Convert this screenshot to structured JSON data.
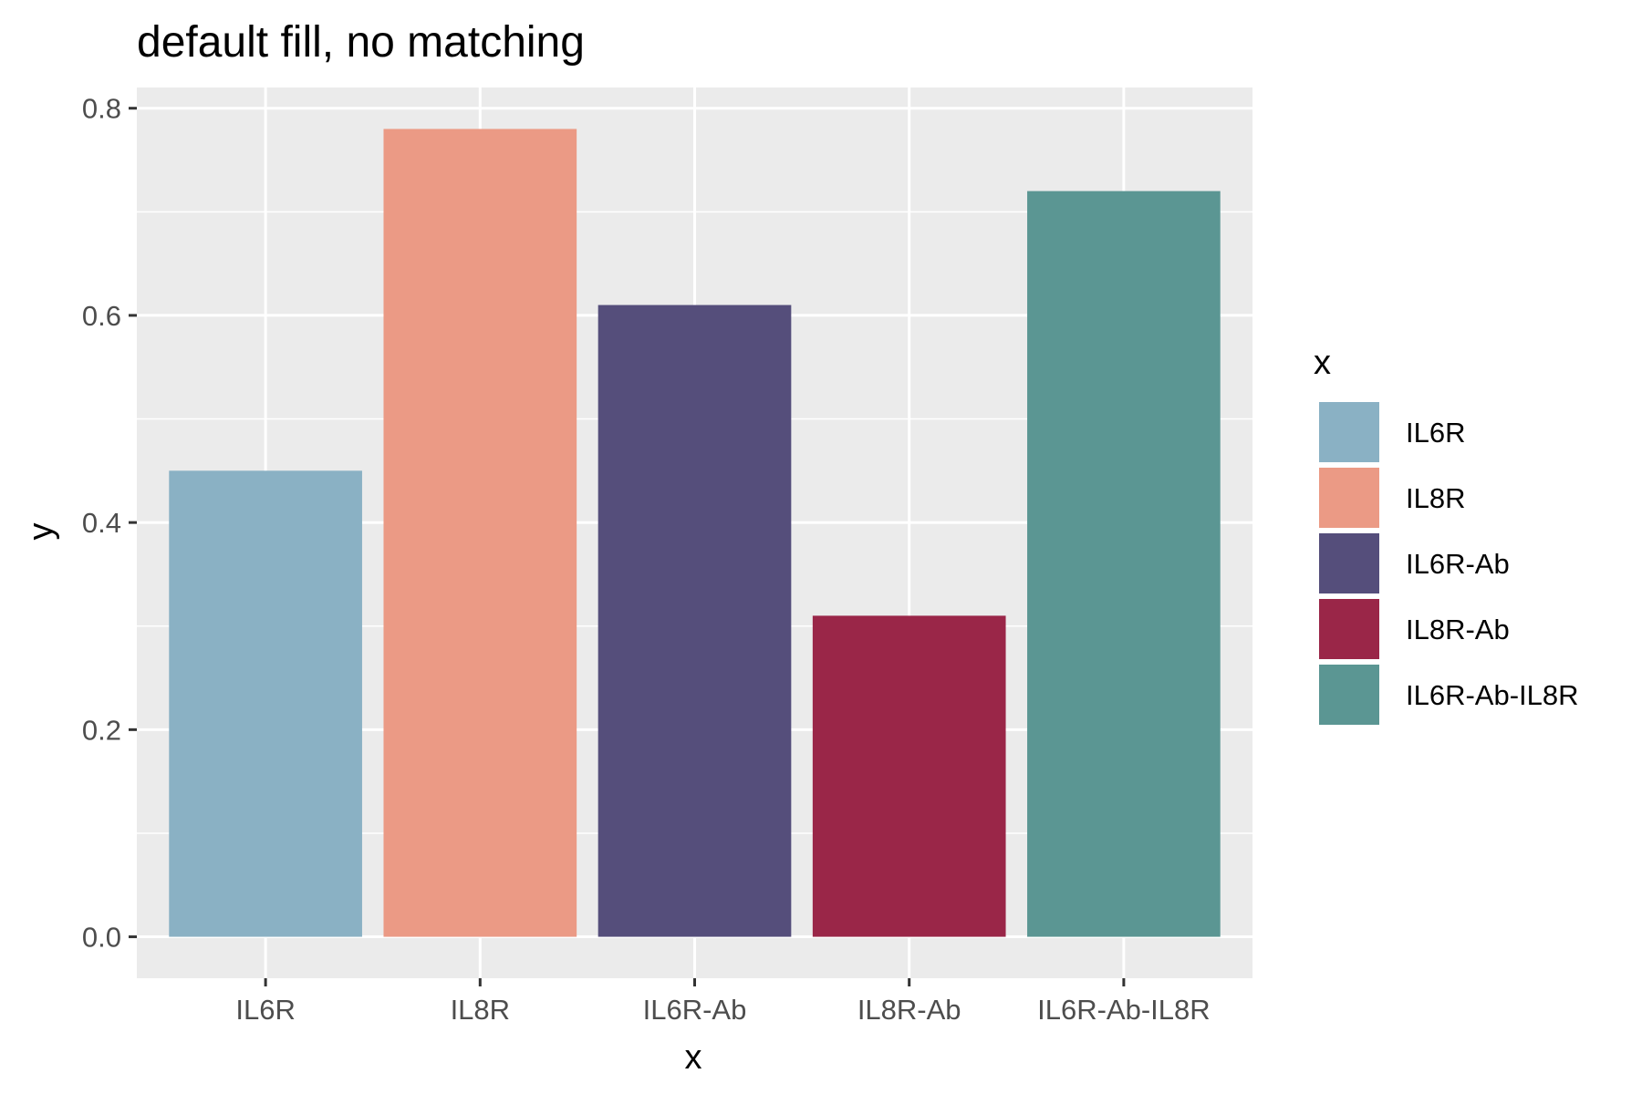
{
  "chart_data": {
    "type": "bar",
    "title": "default fill, no matching",
    "xlabel": "x",
    "ylabel": "y",
    "categories": [
      "IL6R",
      "IL8R",
      "IL6R-Ab",
      "IL8R-Ab",
      "IL6R-Ab-IL8R"
    ],
    "values": [
      0.45,
      0.78,
      0.61,
      0.31,
      0.72
    ],
    "colors": [
      "#8AB1C4",
      "#EB9A85",
      "#554E7B",
      "#9A2648",
      "#5B9693"
    ],
    "ylim": [
      -0.04,
      0.82
    ],
    "yticks": [
      0.0,
      0.2,
      0.4,
      0.6,
      0.8
    ],
    "ytick_labels": [
      "0.0",
      "0.2",
      "0.4",
      "0.6",
      "0.8"
    ],
    "grid": true,
    "panel_background": "#EBEBEB",
    "legend": {
      "title": "x",
      "position": "right",
      "entries": [
        "IL6R",
        "IL8R",
        "IL6R-Ab",
        "IL8R-Ab",
        "IL6R-Ab-IL8R"
      ]
    }
  }
}
